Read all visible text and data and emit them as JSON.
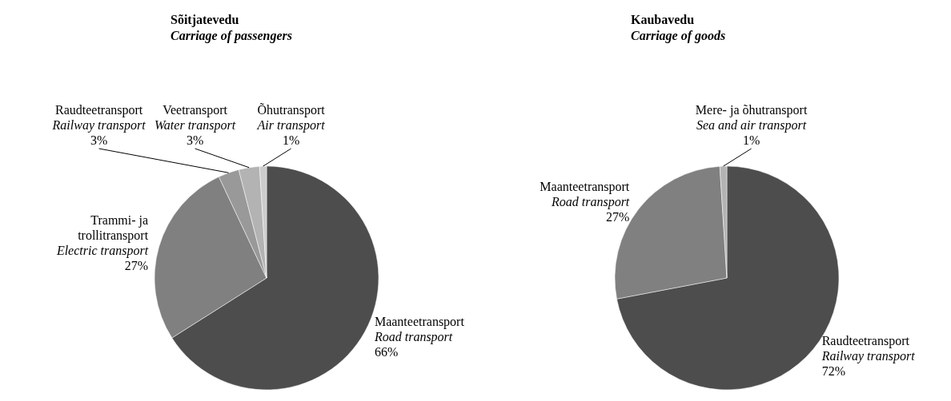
{
  "chart_data": [
    {
      "type": "pie",
      "title": "Sõitjatevedu",
      "subtitle": "Carriage of passengers",
      "categories": [
        "Maanteetransport\nRoad transport",
        "Trammi- ja\ntrollitransport\nElectric transport",
        "Raudteetransport\nRailway transport",
        "Veetransport\nWater transport",
        "Õhutransport\nAir transport"
      ],
      "values": [
        66,
        27,
        3,
        3,
        1
      ],
      "colors": [
        "#4d4d4d",
        "#808080",
        "#999999",
        "#b3b3b3",
        "#cccccc"
      ],
      "value_labels": [
        "66%",
        "27%",
        "3%",
        "3%",
        "1%"
      ]
    },
    {
      "type": "pie",
      "title": "Kaubavedu",
      "subtitle": "Carriage of goods",
      "categories": [
        "Raudteetransport\nRailway transport",
        "Maanteetransport\nRoad transport",
        "Mere- ja õhutransport\nSea and air transport"
      ],
      "values": [
        72,
        27,
        1
      ],
      "colors": [
        "#4d4d4d",
        "#808080",
        "#b3b3b3"
      ],
      "value_labels": [
        "72%",
        "27%",
        "1%"
      ]
    }
  ]
}
